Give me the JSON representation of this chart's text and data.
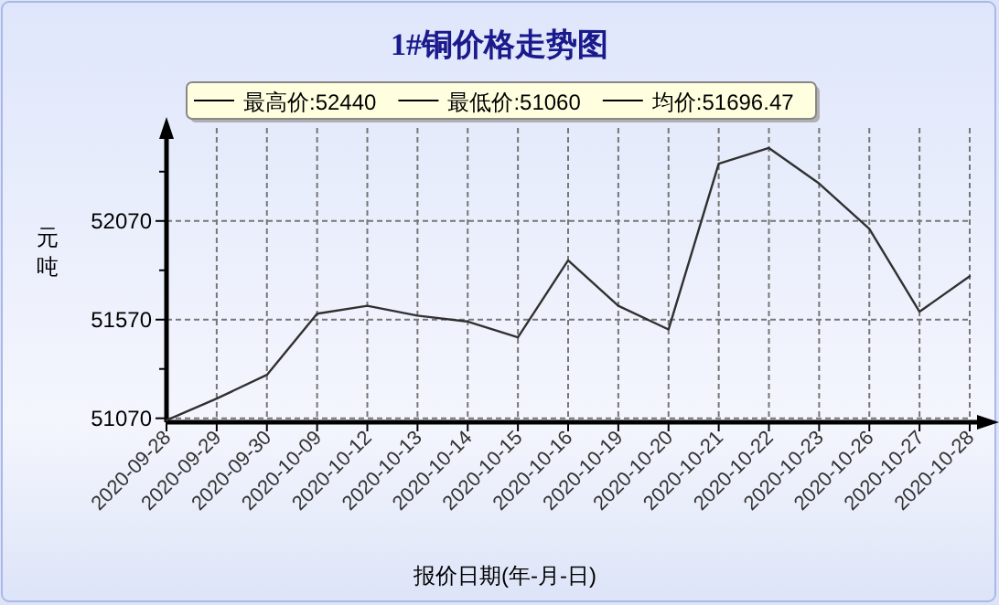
{
  "chart_data": {
    "type": "line",
    "title": "1#铜价格走势图",
    "xlabel": "报价日期(年-月-日)",
    "ylabel": "元吨",
    "categories": [
      "2020-09-28",
      "2020-09-29",
      "2020-09-30",
      "2020-10-09",
      "2020-10-12",
      "2020-10-13",
      "2020-10-14",
      "2020-10-15",
      "2020-10-16",
      "2020-10-19",
      "2020-10-20",
      "2020-10-21",
      "2020-10-22",
      "2020-10-23",
      "2020-10-26",
      "2020-10-27",
      "2020-10-28"
    ],
    "series": [
      {
        "color": "#303030",
        "values": [
          51060,
          51170,
          51290,
          51600,
          51640,
          51590,
          51560,
          51480,
          51870,
          51640,
          51520,
          52360,
          52440,
          52260,
          52030,
          51610,
          51790
        ]
      }
    ],
    "ylim": [
      51050,
      52560
    ],
    "yticks": [
      51070,
      {
        "value": 51320,
        "label": null
      },
      51570,
      {
        "value": 51820,
        "label": null
      },
      52070,
      {
        "value": 52320,
        "label": null
      }
    ],
    "grid": true,
    "marker": "none",
    "line_style": "solid",
    "annotations": [
      "最高价:52440",
      "最低价:51060",
      "均价:51696.47"
    ]
  }
}
